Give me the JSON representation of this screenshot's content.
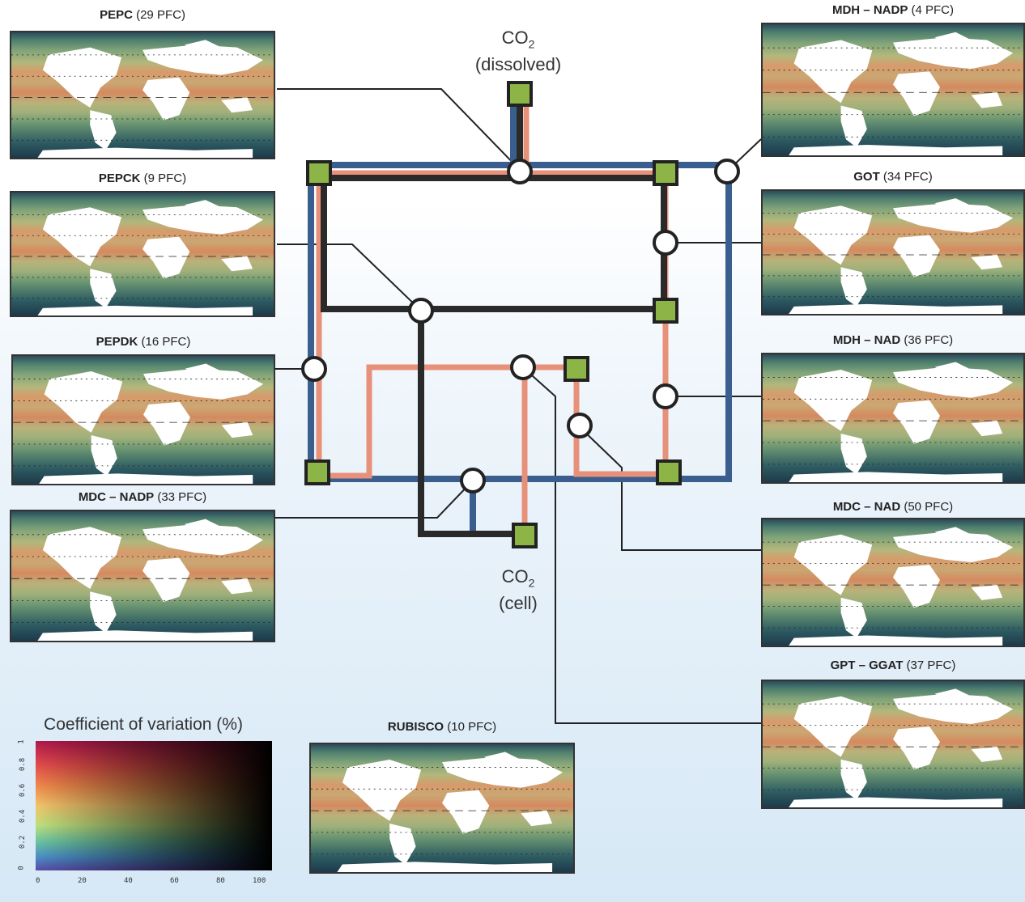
{
  "co2_dissolved": {
    "line1": "CO",
    "sub": "2",
    "line2": "(dissolved)"
  },
  "co2_cell": {
    "line1": "CO",
    "sub": "2",
    "line2": "(cell)"
  },
  "panels": [
    {
      "id": "pepc",
      "name": "PEPC",
      "count": "(29 PFC)"
    },
    {
      "id": "pepck",
      "name": "PEPCK",
      "count": "(9 PFC)"
    },
    {
      "id": "pepdk",
      "name": "PEPDK",
      "count": "(16 PFC)"
    },
    {
      "id": "mdc-nadp",
      "name": "MDC – NADP",
      "count": "(33 PFC)"
    },
    {
      "id": "mdh-nadp",
      "name": "MDH – NADP",
      "count": "(4 PFC)"
    },
    {
      "id": "got",
      "name": "GOT",
      "count": "(34 PFC)"
    },
    {
      "id": "mdh-nad",
      "name": "MDH – NAD",
      "count": "(36 PFC)"
    },
    {
      "id": "mdc-nad",
      "name": "MDC – NAD",
      "count": "(50 PFC)"
    },
    {
      "id": "gpt-ggat",
      "name": "GPT – GGAT",
      "count": "(37 PFC)"
    },
    {
      "id": "rubisco",
      "name": "RUBISCO",
      "count": "(10 PFC)"
    }
  ],
  "legend": {
    "title": "Coefficient of variation (%)",
    "x_ticks": [
      "0",
      "20",
      "40",
      "60",
      "80",
      "100"
    ],
    "y_ticks": [
      "0",
      "0.2",
      "0.4",
      "0.6",
      "0.8",
      "1"
    ]
  },
  "colors": {
    "blue": "#3a5f8f",
    "salmon": "#e8917a",
    "black": "#2a2a2a",
    "green": "#8db446"
  }
}
